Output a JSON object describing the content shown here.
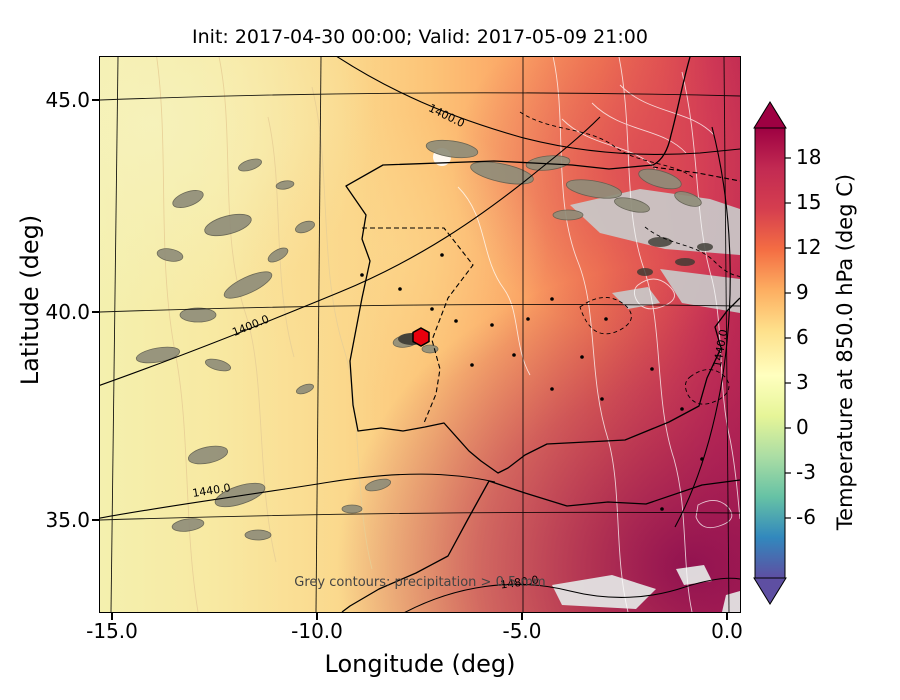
{
  "figure": {
    "title": "Init: 2017-04-30 00:00; Valid: 2017-05-09 21:00",
    "xlabel": "Longitude (deg)",
    "ylabel": "Latitude (deg)",
    "x_ticks": [
      "-15.0",
      "-10.0",
      "-5.0",
      "0.0"
    ],
    "y_ticks": [
      "45.0",
      "40.0",
      "35.0"
    ],
    "annotation": "Grey contours: precipitation > 0.5 mm"
  },
  "colorbar": {
    "label": "Temperature at 850.0 hPa (deg C)",
    "ticks": [
      "18",
      "15",
      "12",
      "9",
      "6",
      "3",
      "0",
      "-3",
      "-6"
    ],
    "gradient_top_to_bottom": [
      "#9e0142",
      "#c22a52",
      "#d53e4f",
      "#f46d43",
      "#fdae61",
      "#fee08b",
      "#ffffbf",
      "#e6f598",
      "#abdda4",
      "#66c2a5",
      "#3288bd",
      "#5e4fa2"
    ],
    "over_color": "#9e0142",
    "under_color": "#5e4fa2"
  },
  "contour_labels": [
    "1400.0",
    "1400.0",
    "1440.0",
    "1440.0",
    "1480.0"
  ],
  "chart_data": {
    "type": "heatmap",
    "title": "Init: 2017-04-30 00:00; Valid: 2017-05-09 21:00",
    "xlabel": "Longitude (deg)",
    "ylabel": "Latitude (deg)",
    "xlim": [
      -15.3,
      0.3
    ],
    "ylim": [
      32.8,
      46.0
    ],
    "x_ticks": [
      -15.0,
      -10.0,
      -5.0,
      0.0
    ],
    "y_ticks": [
      35.0,
      40.0,
      45.0
    ],
    "field": "Temperature at 850.0 hPa (deg C)",
    "colormap": "Spectral-reversed style (blue -> teal -> yellow -> orange -> red -> magenta)",
    "colorbar_ticks": [
      18,
      15,
      12,
      9,
      6,
      3,
      0,
      -3,
      -6
    ],
    "colorbar_extend": "both",
    "grid": "black graticule at 5 degree intervals",
    "sample_grid": {
      "lon": [
        -15,
        -10,
        -5,
        0
      ],
      "lat": [
        45,
        40,
        35
      ],
      "temp_degC": [
        [
          6,
          8,
          12,
          15
        ],
        [
          7,
          9,
          13,
          17
        ],
        [
          8,
          10,
          14,
          19
        ]
      ]
    },
    "geopotential_contour_labels_m": [
      1400.0,
      1440.0,
      1480.0
    ],
    "precipitation_note": "Grey contours: precipitation > 0.5 mm",
    "marker": {
      "lon": -7.6,
      "lat": 39.3,
      "shape": "hexagon",
      "color": "#e8000d"
    }
  }
}
